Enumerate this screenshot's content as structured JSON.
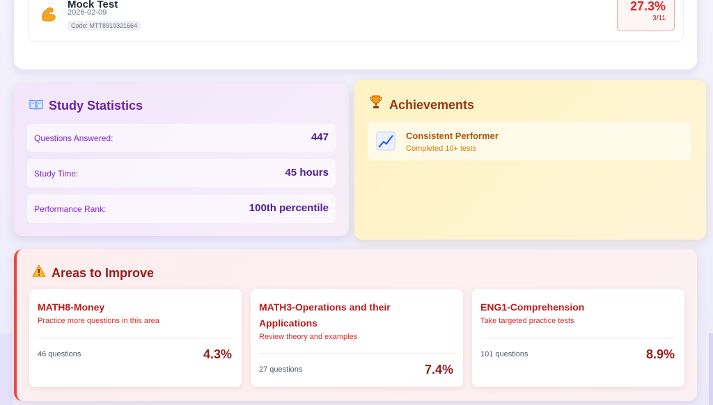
{
  "recent_test": {
    "title": "Mock Test",
    "date": "2026-02-09",
    "code": "Code: MTT8919321664",
    "score_percent": "27.3%",
    "score_fraction": "3/11",
    "icon": "flexed-biceps-icon"
  },
  "study_statistics": {
    "title": "Study Statistics",
    "icon": "open-book-icon",
    "rows": [
      {
        "label": "Questions Answered:",
        "value": "447"
      },
      {
        "label": "Study Time:",
        "value": "45 hours"
      },
      {
        "label": "Performance Rank:",
        "value": "100th percentile"
      }
    ]
  },
  "achievements": {
    "title": "Achievements",
    "icon": "trophy-icon",
    "items": [
      {
        "name": "Consistent Performer",
        "description": "Completed 10+ tests",
        "icon": "chart-increasing-icon"
      }
    ]
  },
  "areas_to_improve": {
    "title": "Areas to Improve",
    "icon": "warning-icon",
    "items": [
      {
        "name": "MATH8-Money",
        "hint": "Practice more questions in this area",
        "count": "46 questions",
        "percent": "4.3%"
      },
      {
        "name": "MATH3-Operations and their Applications",
        "hint": "Review theory and examples",
        "count": "27 questions",
        "percent": "7.4%"
      },
      {
        "name": "ENG1-Comprehension",
        "hint": "Take targeted practice tests",
        "count": "101 questions",
        "percent": "8.9%"
      }
    ]
  },
  "colors": {
    "stats_accent": "#6b21a8",
    "achievement_accent": "#9a3412",
    "improve_accent": "#991b1b",
    "score_red": "#dc2626"
  }
}
